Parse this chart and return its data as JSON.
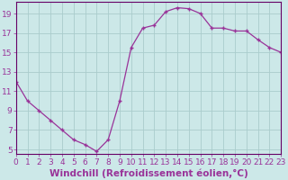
{
  "x": [
    0,
    1,
    2,
    3,
    4,
    5,
    6,
    7,
    8,
    9,
    10,
    11,
    12,
    13,
    14,
    15,
    16,
    17,
    18,
    19,
    20,
    21,
    22,
    23
  ],
  "y": [
    12.0,
    10.0,
    9.0,
    8.0,
    7.0,
    6.0,
    5.5,
    4.8,
    6.0,
    10.0,
    15.5,
    17.5,
    17.8,
    19.2,
    19.6,
    19.5,
    19.0,
    17.5,
    17.5,
    17.2,
    17.2,
    16.3,
    15.5,
    15.0
  ],
  "line_color": "#993399",
  "marker": "+",
  "marker_size": 3,
  "marker_lw": 1.0,
  "bg_color": "#cce8e8",
  "grid_color": "#aacccc",
  "axis_color": "#660066",
  "tick_color": "#993399",
  "xlabel": "Windchill (Refroidissement éolien,°C)",
  "yticks": [
    5,
    7,
    9,
    11,
    13,
    15,
    17,
    19
  ],
  "xticks": [
    0,
    1,
    2,
    3,
    4,
    5,
    6,
    7,
    8,
    9,
    10,
    11,
    12,
    13,
    14,
    15,
    16,
    17,
    18,
    19,
    20,
    21,
    22,
    23
  ],
  "xlim": [
    0,
    23
  ],
  "ylim": [
    4.5,
    20.2
  ],
  "xlabel_fontsize": 7.5,
  "tick_fontsize": 6.5,
  "linewidth": 0.9
}
